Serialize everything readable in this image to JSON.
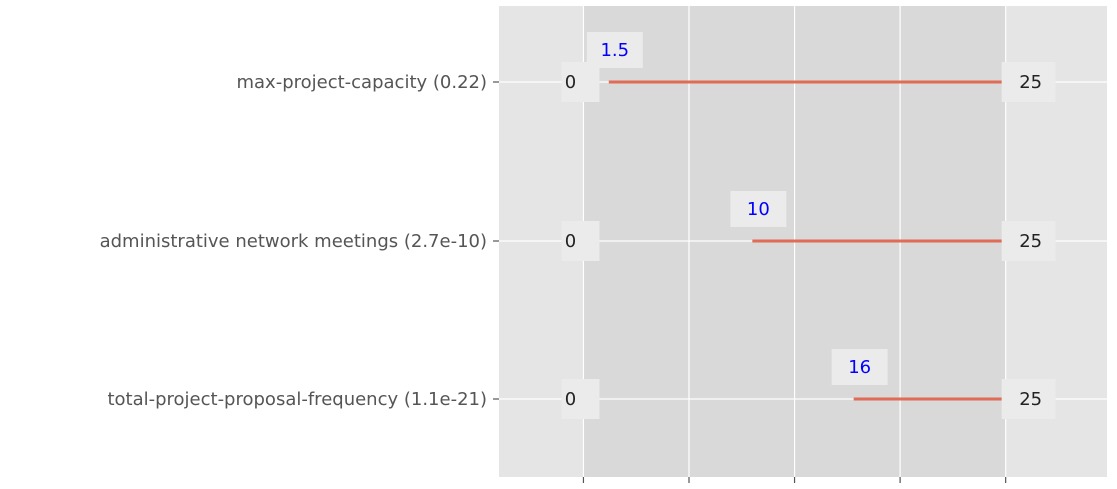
{
  "chart_data": {
    "type": "bar",
    "orientation": "horizontal-range",
    "categories": [
      "max-project-capacity (0.22)",
      "administrative network meetings (2.7e-10)",
      "total-project-proposal-frequency (1.1e-21)"
    ],
    "series": [
      {
        "low": [
          0,
          0,
          0
        ],
        "start": [
          1.5,
          10,
          16
        ],
        "high": [
          25,
          25,
          25
        ]
      }
    ],
    "xlim": [
      -5,
      31
    ],
    "title": "",
    "xlabel": "",
    "ylabel": "",
    "grid": true,
    "colors": {
      "bar": "#e06c55",
      "value_label": "#0000ff",
      "axes_bg": "#e5e5e5",
      "range_bg": "#d9d9d9",
      "grid": "#ffffff",
      "label_box": "#ebebeb"
    }
  }
}
